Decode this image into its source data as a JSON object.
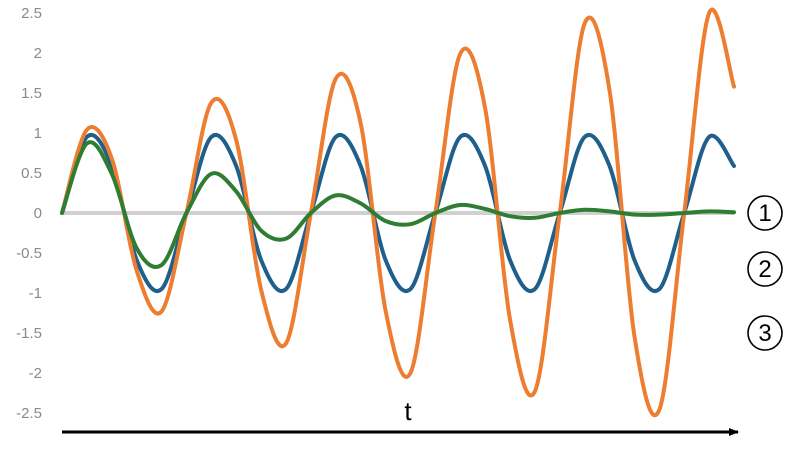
{
  "chart_data": {
    "type": "line",
    "title": "",
    "xlabel": "t",
    "ylabel": "",
    "ylim": [
      -2.5,
      2.5
    ],
    "xlim": [
      0,
      2.7
    ],
    "y_ticks": [
      "2.5",
      "2",
      "1.5",
      "1",
      "0.5",
      "0",
      "-0.5",
      "-1",
      "-1.5",
      "-2",
      "-2.5"
    ],
    "grid": false,
    "legend": "none",
    "x": [
      0,
      0.1,
      0.2,
      0.3,
      0.4,
      0.5,
      0.6,
      0.7,
      0.8,
      0.9,
      1.0,
      1.1,
      1.2,
      1.3,
      1.4,
      1.5,
      1.6,
      1.7,
      1.8,
      1.9,
      2.0,
      2.1,
      2.2,
      2.3,
      2.4,
      2.5,
      2.6,
      2.7
    ],
    "series": [
      {
        "marker": "2",
        "color": "#1f5f8b",
        "values": [
          0,
          0.951,
          0.588,
          -0.588,
          -0.951,
          0,
          0.951,
          0.588,
          -0.588,
          -0.951,
          0,
          0.951,
          0.588,
          -0.588,
          -0.951,
          0,
          0.951,
          0.588,
          -0.588,
          -0.951,
          0,
          0.951,
          0.588,
          -0.588,
          -0.951,
          0,
          0.951,
          0.588
        ]
      },
      {
        "marker": "3",
        "color": "#ed7d31",
        "values": [
          0,
          1.04,
          0.68,
          -0.72,
          -1.23,
          0,
          1.38,
          0.91,
          -0.96,
          -1.63,
          0,
          1.68,
          1.12,
          -1.22,
          -2.0,
          0,
          1.99,
          1.31,
          -1.33,
          -2.23,
          0,
          2.37,
          1.53,
          -1.54,
          -2.46,
          0,
          2.5,
          1.58
        ]
      },
      {
        "marker": "1",
        "color": "#2e7d32",
        "values": [
          0,
          0.87,
          0.49,
          -0.44,
          -0.65,
          0,
          0.49,
          0.27,
          -0.22,
          -0.32,
          0,
          0.22,
          0.12,
          -0.1,
          -0.14,
          0,
          0.1,
          0.05,
          -0.04,
          -0.06,
          0,
          0.04,
          0.02,
          -0.02,
          -0.02,
          0,
          0.02,
          0.01
        ]
      }
    ],
    "end_markers": [
      {
        "id": "1",
        "text": "1",
        "y": 0
      },
      {
        "id": "2",
        "text": "2",
        "y": -0.7
      },
      {
        "id": "3",
        "text": "3",
        "y": -1.5
      }
    ]
  }
}
